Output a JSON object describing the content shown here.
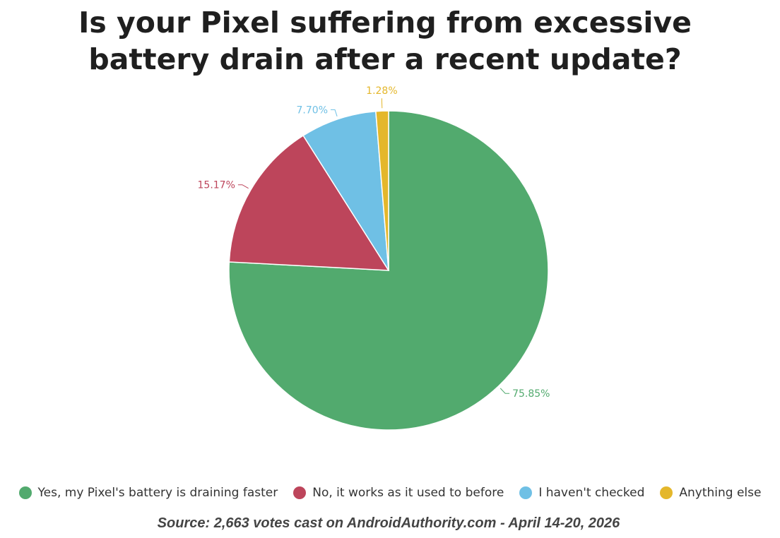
{
  "chart_data": {
    "type": "pie",
    "title": [
      "Is your Pixel suffering from excessive",
      "battery drain after a recent update?"
    ],
    "slices": [
      {
        "name": "Yes, my Pixel's battery is draining faster",
        "value": 75.85,
        "label": "75.85%",
        "color": "#52aa6e"
      },
      {
        "name": "No, it works as it used to before",
        "value": 15.17,
        "label": "15.17%",
        "color": "#bd455b"
      },
      {
        "name": "I haven't checked",
        "value": 7.7,
        "label": "7.70%",
        "color": "#6fc0e5"
      },
      {
        "name": "Anything else",
        "value": 1.28,
        "label": "1.28%",
        "color": "#e4b72b"
      }
    ],
    "start_angle_deg": 0,
    "direction": "counterclockwise",
    "legend_position": "bottom",
    "source": "Source: 2,663 votes cast on AndroidAuthority.com - April 14-20, 2026"
  }
}
